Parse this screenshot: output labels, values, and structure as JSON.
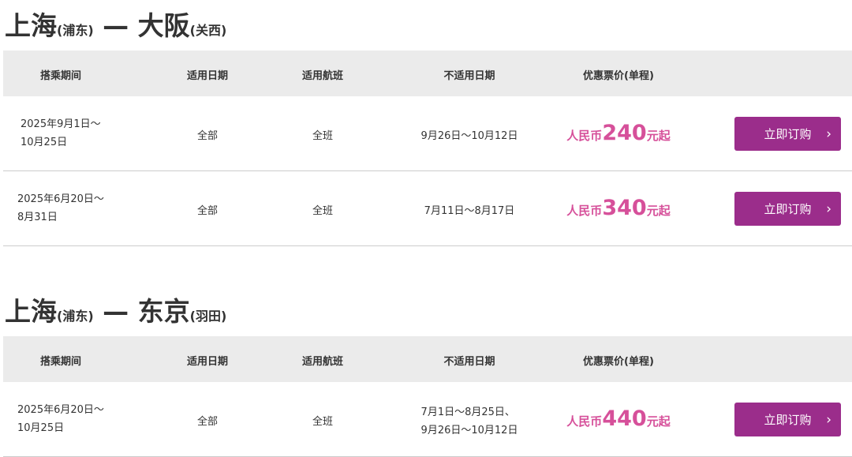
{
  "headers": [
    "搭乘期间",
    "适用日期",
    "适用航班",
    "不适用日期",
    "优惠票价(单程)"
  ],
  "button_label": "立即订购",
  "colors": {
    "price": "#d6509a",
    "button": "#9b2d8b",
    "header_bg": "#ebebeb"
  },
  "sections": [
    {
      "origin": "上海",
      "origin_airport": "(浦东)",
      "dash": "—",
      "dest": "大阪",
      "dest_airport": "(关西)",
      "rows": [
        {
          "period1": "2025年9月1日～",
          "period2": "10月25日",
          "days": "全部",
          "flights": "全班",
          "excluded1": "9月26日～10月12日",
          "excluded2": "",
          "currency": "人民币",
          "price": "240",
          "suffix": "元起"
        },
        {
          "period1": "2025年6月20日～",
          "period2": "8月31日",
          "days": "全部",
          "flights": "全班",
          "excluded1": "7月11日～8月17日",
          "excluded2": "",
          "currency": "人民币",
          "price": "340",
          "suffix": "元起"
        }
      ]
    },
    {
      "origin": "上海",
      "origin_airport": "(浦东)",
      "dash": "—",
      "dest": "东京",
      "dest_airport": "(羽田)",
      "rows": [
        {
          "period1": "2025年6月20日～",
          "period2": "10月25日",
          "days": "全部",
          "flights": "全班",
          "excluded1": "7月1日～8月25日、",
          "excluded2": "9月26日～10月12日",
          "currency": "人民币",
          "price": "440",
          "suffix": "元起"
        }
      ]
    }
  ]
}
